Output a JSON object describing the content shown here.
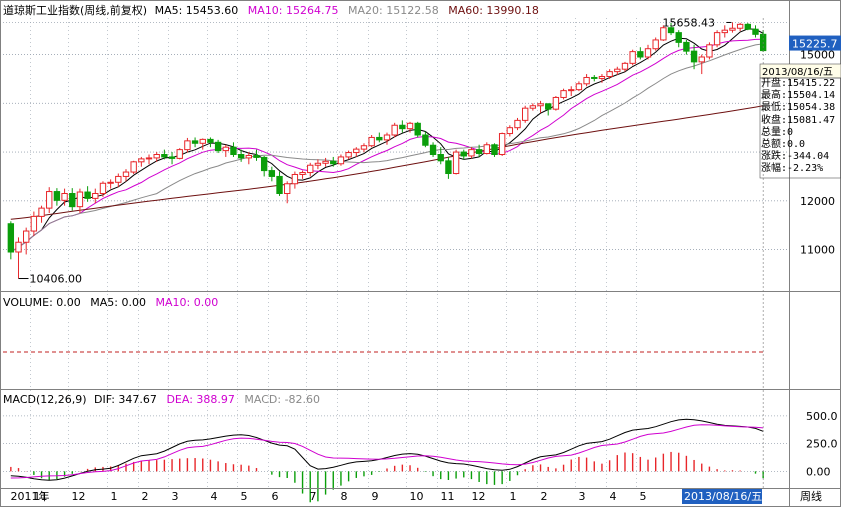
{
  "header": {
    "title": "道琼斯工业指数(周线,前复权)",
    "ma5": "MA5: 15453.60",
    "ma10": "MA10: 15264.75",
    "ma20": "MA20: 15122.58",
    "ma60": "MA60: 13990.18"
  },
  "colors": {
    "up": "#e8262a",
    "down": "#0a9e0a",
    "ma5": "#000000",
    "ma10": "#d000d0",
    "ma20": "#8a8a8a",
    "ma60": "#6e1010",
    "grid": "#9aa4b0",
    "cursor": "#2060c0"
  },
  "price_axis": {
    "ticks": [
      "15000",
      "12000",
      "11000"
    ],
    "current": "15225.7"
  },
  "annotations": {
    "high": "15658.43",
    "low": "10406.00"
  },
  "info_panel": {
    "date": "2013/08/16/五",
    "rows": [
      "开盘:15415.22",
      "最高:15504.14",
      "最低:15054.38",
      "收盘:15081.47",
      "总量:0",
      "总额:0.0",
      "涨跌:-344.04",
      "涨幅:-2.23%"
    ]
  },
  "volume_header": {
    "volume": "VOLUME: 0.00",
    "ma5": "MA5: 0.00",
    "ma10": "MA10: 0.00"
  },
  "macd_header": {
    "name": "MACD(12,26,9)",
    "dif": "DIF: 347.67",
    "dea": "DEA: 388.97",
    "macd": "MACD: -82.60"
  },
  "macd_axis": {
    "ticks": [
      "500.0",
      "250.0",
      "0.00"
    ]
  },
  "time_axis": {
    "labels": [
      "2011年",
      "11",
      "12",
      "1",
      "2",
      "3",
      "4",
      "5",
      "6",
      "7",
      "8",
      "9",
      "10",
      "11",
      "12",
      "1",
      "2",
      "3",
      "4",
      "5"
    ],
    "current_date": "2013/08/16/五",
    "period": "周线"
  },
  "chart_data": [
    {
      "type": "candlestick",
      "title": "道琼斯工业指数(周线,前复权)",
      "ylim": [
        10150,
        15750
      ],
      "columns": [
        "open",
        "high",
        "low",
        "close"
      ],
      "ohlc": [
        [
          11530,
          11580,
          10800,
          10950
        ],
        [
          10950,
          11250,
          10406,
          11150
        ],
        [
          11150,
          11450,
          10900,
          11380
        ],
        [
          11380,
          11780,
          11280,
          11680
        ],
        [
          11680,
          11900,
          11550,
          11850
        ],
        [
          11850,
          12280,
          11750,
          12190
        ],
        [
          12190,
          12260,
          11900,
          12010
        ],
        [
          12010,
          12250,
          11900,
          12150
        ],
        [
          12150,
          12260,
          11800,
          11880
        ],
        [
          11880,
          12250,
          11750,
          12180
        ],
        [
          12180,
          12300,
          11980,
          12050
        ],
        [
          12050,
          12250,
          11950,
          12150
        ],
        [
          12150,
          12400,
          12080,
          12360
        ],
        [
          12360,
          12440,
          12250,
          12380
        ],
        [
          12380,
          12560,
          12280,
          12500
        ],
        [
          12500,
          12650,
          12400,
          12590
        ],
        [
          12590,
          12820,
          12550,
          12800
        ],
        [
          12800,
          12900,
          12700,
          12860
        ],
        [
          12860,
          12950,
          12750,
          12880
        ],
        [
          12880,
          13000,
          12800,
          12950
        ],
        [
          12950,
          13050,
          12850,
          12900
        ],
        [
          12900,
          13000,
          12750,
          12870
        ],
        [
          12870,
          13080,
          12850,
          13050
        ],
        [
          13050,
          13290,
          12990,
          13230
        ],
        [
          13230,
          13300,
          13100,
          13180
        ],
        [
          13180,
          13280,
          13050,
          13260
        ],
        [
          13260,
          13300,
          13100,
          13200
        ],
        [
          13200,
          13250,
          12980,
          13030
        ],
        [
          13030,
          13150,
          12900,
          13100
        ],
        [
          13100,
          13200,
          12900,
          12950
        ],
        [
          12950,
          13050,
          12800,
          12880
        ],
        [
          12880,
          13000,
          12750,
          12930
        ],
        [
          12930,
          13050,
          12820,
          12890
        ],
        [
          12890,
          12920,
          12500,
          12620
        ],
        [
          12620,
          12700,
          12400,
          12500
        ],
        [
          12500,
          12600,
          12100,
          12150
        ],
        [
          12150,
          12400,
          11950,
          12350
        ],
        [
          12350,
          12600,
          12250,
          12540
        ],
        [
          12540,
          12620,
          12450,
          12580
        ],
        [
          12580,
          12780,
          12500,
          12730
        ],
        [
          12730,
          12850,
          12650,
          12770
        ],
        [
          12770,
          12880,
          12700,
          12810
        ],
        [
          12810,
          12900,
          12700,
          12760
        ],
        [
          12760,
          12950,
          12720,
          12900
        ],
        [
          12900,
          13030,
          12850,
          12990
        ],
        [
          12990,
          13100,
          12900,
          13060
        ],
        [
          13060,
          13180,
          13000,
          13130
        ],
        [
          13130,
          13350,
          13100,
          13300
        ],
        [
          13300,
          13400,
          13200,
          13250
        ],
        [
          13250,
          13400,
          13150,
          13350
        ],
        [
          13350,
          13600,
          13300,
          13550
        ],
        [
          13550,
          13650,
          13400,
          13480
        ],
        [
          13480,
          13620,
          13400,
          13590
        ],
        [
          13590,
          13620,
          13300,
          13350
        ],
        [
          13350,
          13420,
          13100,
          13140
        ],
        [
          13140,
          13200,
          12900,
          12950
        ],
        [
          12950,
          13100,
          12750,
          12820
        ],
        [
          12820,
          12900,
          12450,
          12560
        ],
        [
          12560,
          13050,
          12540,
          13000
        ],
        [
          13000,
          13050,
          12850,
          12920
        ],
        [
          12920,
          13100,
          12870,
          13050
        ],
        [
          13050,
          13150,
          12900,
          12970
        ],
        [
          12970,
          13200,
          12950,
          13150
        ],
        [
          13150,
          13180,
          12900,
          12950
        ],
        [
          12950,
          13400,
          12920,
          13380
        ],
        [
          13380,
          13550,
          13320,
          13500
        ],
        [
          13500,
          13700,
          13450,
          13650
        ],
        [
          13650,
          13950,
          13600,
          13900
        ],
        [
          13900,
          14000,
          13850,
          13950
        ],
        [
          13950,
          14050,
          13800,
          13990
        ],
        [
          13990,
          14000,
          13750,
          13880
        ],
        [
          13880,
          14150,
          13850,
          14120
        ],
        [
          14120,
          14300,
          14080,
          14260
        ],
        [
          14260,
          14350,
          14150,
          14280
        ],
        [
          14280,
          14450,
          14250,
          14400
        ],
        [
          14400,
          14600,
          14350,
          14530
        ],
        [
          14530,
          14580,
          14450,
          14510
        ],
        [
          14510,
          14600,
          14420,
          14550
        ],
        [
          14550,
          14700,
          14500,
          14650
        ],
        [
          14650,
          14750,
          14580,
          14700
        ],
        [
          14700,
          14850,
          14650,
          14820
        ],
        [
          14820,
          15100,
          14780,
          15060
        ],
        [
          15060,
          15150,
          14900,
          14950
        ],
        [
          14950,
          15200,
          14900,
          15120
        ],
        [
          15120,
          15350,
          15080,
          15300
        ],
        [
          15300,
          15600,
          15280,
          15550
        ],
        [
          15550,
          15650,
          15400,
          15450
        ],
        [
          15450,
          15500,
          15150,
          15250
        ],
        [
          15250,
          15300,
          15000,
          15070
        ],
        [
          15070,
          15200,
          14700,
          14850
        ],
        [
          14850,
          15000,
          14600,
          14950
        ],
        [
          14950,
          15250,
          14900,
          15200
        ],
        [
          15200,
          15500,
          15150,
          15450
        ],
        [
          15450,
          15600,
          15350,
          15500
        ],
        [
          15500,
          15658.43,
          15450,
          15540
        ],
        [
          15540,
          15650,
          15480,
          15620
        ],
        [
          15620,
          15650,
          15500,
          15520
        ],
        [
          15520,
          15600,
          15350,
          15415
        ],
        [
          15415.22,
          15504.14,
          15054.38,
          15081.47
        ]
      ],
      "ma": {
        "periods": [
          5,
          10,
          20,
          60
        ],
        "last": [
          15453.6,
          15264.75,
          15122.58,
          13990.18
        ]
      }
    },
    {
      "type": "bar",
      "title": "VOLUME",
      "series": [
        {
          "name": "VOLUME",
          "value": 0.0
        },
        {
          "name": "MA5",
          "value": 0.0
        },
        {
          "name": "MA10",
          "value": 0.0
        }
      ]
    },
    {
      "type": "line",
      "title": "MACD(12,26,9)",
      "ylim": [
        -150,
        580
      ],
      "dif_last": 347.67,
      "dea_last": 388.97,
      "macd_last": -82.6,
      "dif_keypoints": [
        [
          0,
          -40
        ],
        [
          5,
          -80
        ],
        [
          12,
          20
        ],
        [
          18,
          150
        ],
        [
          24,
          280
        ],
        [
          30,
          330
        ],
        [
          36,
          230
        ],
        [
          40,
          20
        ],
        [
          46,
          90
        ],
        [
          52,
          160
        ],
        [
          58,
          70
        ],
        [
          64,
          10
        ],
        [
          70,
          140
        ],
        [
          76,
          260
        ],
        [
          82,
          380
        ],
        [
          88,
          470
        ],
        [
          94,
          410
        ],
        [
          96,
          400
        ],
        [
          99,
          347.67
        ]
      ],
      "dea_keypoints": [
        [
          0,
          -60
        ],
        [
          6,
          -40
        ],
        [
          12,
          0
        ],
        [
          18,
          100
        ],
        [
          24,
          220
        ],
        [
          30,
          300
        ],
        [
          36,
          260
        ],
        [
          42,
          120
        ],
        [
          48,
          110
        ],
        [
          54,
          140
        ],
        [
          60,
          90
        ],
        [
          66,
          60
        ],
        [
          72,
          140
        ],
        [
          78,
          240
        ],
        [
          84,
          340
        ],
        [
          90,
          420
        ],
        [
          96,
          400
        ],
        [
          99,
          388.97
        ]
      ]
    }
  ]
}
